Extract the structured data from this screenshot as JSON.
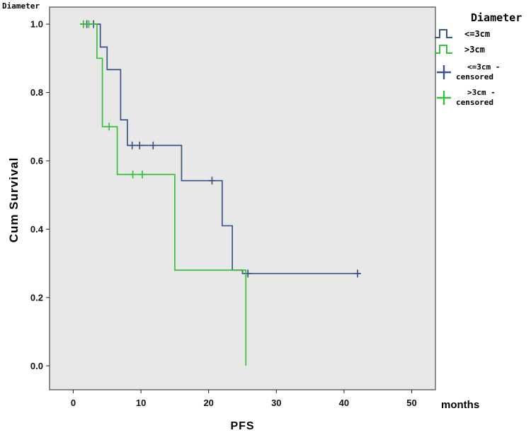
{
  "header_label": "Diameter",
  "chart_data": {
    "type": "line",
    "subtype": "kaplan-meier-step",
    "title": "",
    "xlabel": "PFS",
    "x_unit_label": "months",
    "ylabel": "Cum Survival",
    "xlim": [
      -3.5,
      53.5
    ],
    "ylim": [
      -0.07,
      1.05
    ],
    "xticks": [
      0,
      10,
      20,
      30,
      40,
      50
    ],
    "yticks": [
      0.0,
      0.2,
      0.4,
      0.6,
      0.8,
      1.0
    ],
    "grid": "off",
    "plot_bg": "#e8e8e8",
    "plot_border": "#555555",
    "legend_position": "right-outside",
    "series": [
      {
        "name": "<=3cm",
        "color": "#3b5588",
        "steps": [
          [
            1,
            1.0
          ],
          [
            4,
            0.933
          ],
          [
            5,
            0.867
          ],
          [
            7,
            0.72
          ],
          [
            8,
            0.645
          ],
          [
            16,
            0.542
          ],
          [
            22,
            0.41
          ],
          [
            23.5,
            0.28
          ],
          [
            25,
            0.27
          ],
          [
            42.5,
            0.27
          ]
        ],
        "censored": [
          [
            2,
            1.0
          ],
          [
            3,
            1.0
          ],
          [
            8.7,
            0.645
          ],
          [
            9.8,
            0.645
          ],
          [
            11.8,
            0.645
          ],
          [
            20.5,
            0.542
          ],
          [
            25.8,
            0.27
          ],
          [
            42,
            0.27
          ]
        ]
      },
      {
        "name": ">3cm",
        "color": "#3abf3a",
        "steps": [
          [
            1,
            1.0
          ],
          [
            3.5,
            0.9
          ],
          [
            4.3,
            0.7
          ],
          [
            6.5,
            0.56
          ],
          [
            15,
            0.28
          ],
          [
            25.5,
            0.0
          ]
        ],
        "censored": [
          [
            1.5,
            1.0
          ],
          [
            2.3,
            1.0
          ],
          [
            5.3,
            0.7
          ],
          [
            8.8,
            0.56
          ],
          [
            10.2,
            0.56
          ]
        ]
      }
    ],
    "legend": {
      "title": "Diameter",
      "entries": [
        {
          "label": "<=3cm",
          "type": "step",
          "color": "#3b5588"
        },
        {
          "label": ">3cm",
          "type": "step",
          "color": "#3abf3a"
        },
        {
          "label": "<=3cm -",
          "label2": "censored",
          "type": "plus",
          "color": "#3b5588"
        },
        {
          "label": ">3cm -",
          "label2": "censored",
          "type": "plus",
          "color": "#3abf3a"
        }
      ]
    }
  }
}
